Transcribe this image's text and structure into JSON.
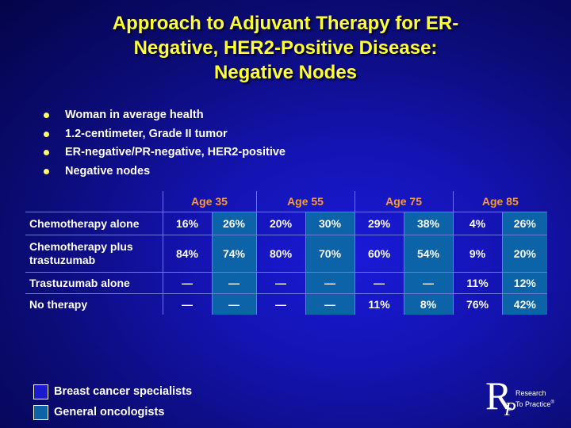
{
  "title": {
    "line1": "Approach to Adjuvant Therapy for ER-",
    "line2": "Negative, HER2-Positive Disease:",
    "line3": "Negative Nodes"
  },
  "bullets": [
    "Woman in average health",
    "1.2-centimeter, Grade II tumor",
    "ER-negative/PR-negative, HER2-positive",
    "Negative nodes"
  ],
  "table": {
    "ages": [
      "Age 35",
      "Age 55",
      "Age 75",
      "Age 85"
    ],
    "rows": [
      {
        "label": "Chemotherapy alone",
        "values": [
          "16%",
          "26%",
          "20%",
          "30%",
          "29%",
          "38%",
          "4%",
          "26%"
        ]
      },
      {
        "label": "Chemotherapy plus trastuzumab",
        "values": [
          "84%",
          "74%",
          "80%",
          "70%",
          "60%",
          "54%",
          "9%",
          "20%"
        ]
      },
      {
        "label": "Trastuzumab alone",
        "values": [
          "—",
          "—",
          "—",
          "—",
          "—",
          "—",
          "11%",
          "12%"
        ]
      },
      {
        "label": "No therapy",
        "values": [
          "—",
          "—",
          "—",
          "—",
          "11%",
          "8%",
          "76%",
          "42%"
        ]
      }
    ]
  },
  "legend": {
    "specialists": "Breast cancer specialists",
    "specialists_color": "#1a1ad0",
    "oncologists": "General oncologists",
    "oncologists_color": "#0d63a7"
  },
  "logo": {
    "letter_r": "R",
    "letter_p": "P",
    "text_line1": "Research",
    "text_line2": "To Practice",
    "trademark": "®"
  },
  "colors": {
    "title": "#ffff33",
    "age_header": "#ff9933",
    "bullet": "#ffff66"
  }
}
